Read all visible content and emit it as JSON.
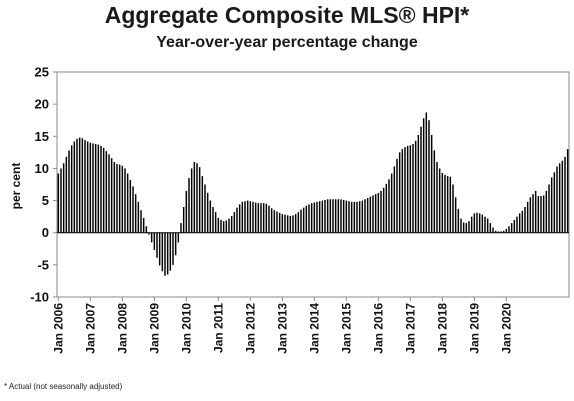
{
  "chart_data": {
    "type": "bar",
    "title": "Aggregate Composite MLS® HPI*",
    "subtitle": "Year-over-year percentage change",
    "ylabel": "per cent",
    "xlabel": "",
    "ylim": [
      -10,
      25
    ],
    "yticks": [
      -10,
      -5,
      0,
      5,
      10,
      15,
      20,
      25
    ],
    "x_tick_labels": [
      "Jan 2006",
      "Jan 2007",
      "Jan 2008",
      "Jan 2009",
      "Jan 2010",
      "Jan 2011",
      "Jan 2012",
      "Jan 2013",
      "Jan 2014",
      "Jan 2015",
      "Jan 2016",
      "Jan 2017",
      "Jan 2018",
      "Jan 2019",
      "Jan 2020"
    ],
    "start_period": "Jan 2006",
    "frequency": "monthly",
    "grid": false,
    "bar_color": "#000000",
    "values": [
      9.2,
      10.0,
      10.8,
      11.8,
      12.8,
      13.6,
      14.2,
      14.6,
      14.8,
      14.7,
      14.4,
      14.2,
      14.0,
      13.9,
      13.8,
      13.7,
      13.5,
      13.2,
      12.7,
      12.2,
      11.6,
      11.0,
      10.7,
      10.6,
      10.4,
      10.0,
      9.2,
      8.2,
      7.2,
      6.0,
      4.8,
      3.5,
      2.3,
      1.0,
      -0.3,
      -1.5,
      -2.7,
      -3.9,
      -5.1,
      -6.0,
      -6.7,
      -6.5,
      -5.9,
      -5.0,
      -3.5,
      -1.5,
      1.5,
      4.0,
      6.5,
      8.5,
      10.0,
      11.0,
      10.8,
      10.2,
      8.8,
      7.5,
      6.2,
      5.0,
      4.0,
      3.2,
      2.3,
      2.0,
      1.8,
      1.9,
      2.2,
      2.6,
      3.2,
      3.9,
      4.4,
      4.8,
      4.9,
      5.0,
      4.9,
      4.8,
      4.7,
      4.6,
      4.6,
      4.6,
      4.5,
      4.2,
      3.8,
      3.5,
      3.3,
      3.1,
      2.9,
      2.8,
      2.7,
      2.6,
      2.7,
      2.9,
      3.2,
      3.6,
      3.9,
      4.2,
      4.4,
      4.6,
      4.7,
      4.8,
      4.9,
      5.0,
      5.1,
      5.2,
      5.2,
      5.2,
      5.2,
      5.2,
      5.2,
      5.1,
      5.0,
      4.9,
      4.8,
      4.8,
      4.8,
      4.9,
      5.0,
      5.2,
      5.4,
      5.6,
      5.8,
      6.0,
      6.2,
      6.5,
      7.0,
      7.6,
      8.3,
      9.2,
      10.3,
      11.5,
      12.5,
      13.0,
      13.3,
      13.5,
      13.6,
      13.8,
      14.3,
      15.2,
      16.5,
      17.8,
      18.7,
      17.5,
      15.2,
      12.8,
      11.0,
      10.0,
      9.3,
      9.0,
      8.8,
      8.7,
      7.5,
      5.5,
      3.7,
      2.2,
      1.6,
      1.5,
      1.8,
      2.5,
      3.0,
      3.1,
      3.0,
      2.8,
      2.5,
      2.2,
      1.5,
      0.8,
      0.3,
      0.2,
      0.2,
      0.3,
      0.6,
      1.0,
      1.5,
      2.0,
      2.5,
      3.0,
      3.4,
      4.0,
      4.8,
      5.5,
      6.0,
      6.5,
      5.7,
      5.7,
      5.8,
      6.5,
      7.5,
      8.6,
      9.4,
      10.3,
      10.8,
      11.2,
      11.8,
      13.0
    ]
  },
  "footnote": "* Actual (not seasonally adjusted)"
}
